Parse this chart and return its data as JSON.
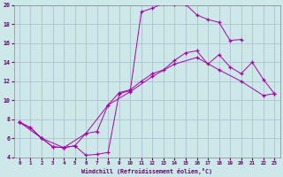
{
  "xlabel": "Windchill (Refroidissement éolien,°C)",
  "bg_color": "#cce8e8",
  "line_color": "#aa00aa",
  "grid_color": "#aabbcc",
  "xlim": [
    -0.5,
    23.5
  ],
  "ylim": [
    4,
    20
  ],
  "yticks": [
    4,
    6,
    8,
    10,
    12,
    14,
    16,
    18,
    20
  ],
  "xticks": [
    0,
    1,
    2,
    3,
    4,
    5,
    6,
    7,
    8,
    9,
    10,
    11,
    12,
    13,
    14,
    15,
    16,
    17,
    18,
    19,
    20,
    21,
    22,
    23
  ],
  "curve1_x": [
    0,
    1,
    2,
    3,
    4,
    5,
    6,
    7,
    8,
    9,
    10,
    11,
    12,
    13,
    14,
    15,
    16,
    17,
    18,
    19,
    20
  ],
  "curve1_y": [
    7.7,
    7.1,
    6.0,
    5.1,
    5.0,
    5.2,
    4.2,
    4.3,
    4.5,
    10.7,
    11.0,
    19.3,
    19.7,
    20.2,
    20.1,
    20.1,
    19.0,
    18.5,
    18.2,
    16.3,
    16.4
  ],
  "curve2_x": [
    0,
    1,
    2,
    3,
    4,
    5,
    6,
    7,
    8,
    9,
    10,
    11,
    12,
    13,
    14,
    15,
    16,
    17,
    18,
    19,
    20,
    21,
    22,
    23
  ],
  "curve2_y": [
    7.7,
    7.1,
    6.0,
    5.1,
    5.0,
    5.2,
    6.5,
    6.7,
    9.5,
    10.8,
    11.1,
    12.0,
    12.8,
    13.2,
    14.2,
    15.0,
    15.2,
    13.8,
    14.8,
    13.5,
    12.8,
    14.0,
    12.2,
    10.7
  ],
  "curve3_x": [
    0,
    2,
    4,
    6,
    8,
    10,
    12,
    14,
    16,
    18,
    20,
    22,
    23
  ],
  "curve3_y": [
    7.7,
    6.0,
    5.0,
    6.5,
    9.5,
    10.9,
    12.5,
    13.8,
    14.5,
    13.2,
    12.0,
    10.5,
    10.7
  ]
}
